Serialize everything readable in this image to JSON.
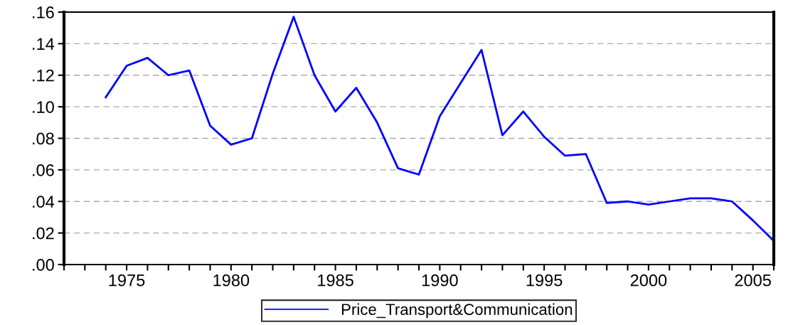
{
  "chart_data": {
    "type": "line",
    "x": [
      1974,
      1975,
      1976,
      1977,
      1978,
      1979,
      1980,
      1981,
      1982,
      1983,
      1984,
      1985,
      1986,
      1987,
      1988,
      1989,
      1990,
      1991,
      1992,
      1993,
      1994,
      1995,
      1996,
      1997,
      1998,
      1999,
      2000,
      2001,
      2002,
      2003,
      2004,
      2005,
      2006
    ],
    "series": [
      {
        "name": "Price_Transport&Communication",
        "color": "#0000ff",
        "values": [
          0.106,
          0.126,
          0.131,
          0.12,
          0.123,
          0.088,
          0.076,
          0.08,
          0.121,
          0.157,
          0.12,
          0.097,
          0.112,
          0.09,
          0.061,
          0.057,
          0.094,
          0.115,
          0.136,
          0.082,
          0.097,
          0.081,
          0.069,
          0.07,
          0.039,
          0.04,
          0.038,
          0.04,
          0.042,
          0.042,
          0.04,
          0.028,
          0.015
        ]
      }
    ],
    "xlim": [
      1972,
      2006
    ],
    "xticks": [
      {
        "value": 1972,
        "label": null
      },
      {
        "value": 1973,
        "label": null
      },
      {
        "value": 1974,
        "label": null
      },
      1975,
      {
        "value": 1976,
        "label": null
      },
      {
        "value": 1977,
        "label": null
      },
      {
        "value": 1978,
        "label": null
      },
      {
        "value": 1979,
        "label": null
      },
      1980,
      {
        "value": 1981,
        "label": null
      },
      {
        "value": 1982,
        "label": null
      },
      {
        "value": 1983,
        "label": null
      },
      {
        "value": 1984,
        "label": null
      },
      1985,
      {
        "value": 1986,
        "label": null
      },
      {
        "value": 1987,
        "label": null
      },
      {
        "value": 1988,
        "label": null
      },
      {
        "value": 1989,
        "label": null
      },
      1990,
      {
        "value": 1991,
        "label": null
      },
      {
        "value": 1992,
        "label": null
      },
      {
        "value": 1993,
        "label": null
      },
      {
        "value": 1994,
        "label": null
      },
      1995,
      {
        "value": 1996,
        "label": null
      },
      {
        "value": 1997,
        "label": null
      },
      {
        "value": 1998,
        "label": null
      },
      {
        "value": 1999,
        "label": null
      },
      2000,
      {
        "value": 2001,
        "label": null
      },
      {
        "value": 2002,
        "label": null
      },
      {
        "value": 2003,
        "label": null
      },
      {
        "value": 2004,
        "label": null
      },
      2005,
      {
        "value": 2006,
        "label": null
      }
    ],
    "ylim": [
      0,
      0.16
    ],
    "yticks": [
      {
        "value": 0,
        "label": ".00"
      },
      {
        "value": 0.02,
        "label": ".02"
      },
      {
        "value": 0.04,
        "label": ".04"
      },
      {
        "value": 0.06,
        "label": ".06"
      },
      {
        "value": 0.08,
        "label": ".08"
      },
      {
        "value": 0.1,
        "label": ".10"
      },
      {
        "value": 0.12,
        "label": ".12"
      },
      {
        "value": 0.14,
        "label": ".14"
      },
      {
        "value": 0.16,
        "label": ".16"
      }
    ],
    "grid": "y",
    "legend": "bottom",
    "line_style": "solid",
    "marker": "none"
  }
}
